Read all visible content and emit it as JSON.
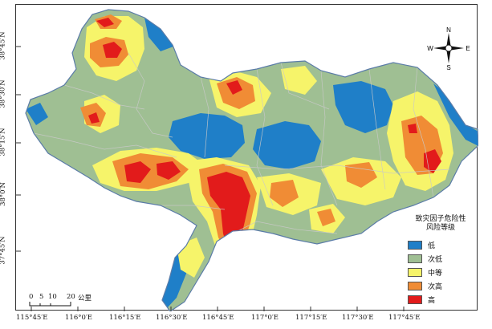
{
  "legend": {
    "title_line1": "致灾因子危险性",
    "title_line2": "风险等级",
    "items": [
      {
        "label": "低",
        "color": "#1f7fc8"
      },
      {
        "label": "次低",
        "color": "#9fbf93"
      },
      {
        "label": "中等",
        "color": "#f6f46a"
      },
      {
        "label": "次高",
        "color": "#f08c35"
      },
      {
        "label": "高",
        "color": "#e21b1b"
      }
    ]
  },
  "axes": {
    "longitudes": [
      "115°45′E",
      "116°0′E",
      "116°15′E",
      "116°30′E",
      "116°45′E",
      "117°0′E",
      "117°15′E",
      "117°30′E",
      "117°45′E"
    ],
    "latitudes": [
      "38°45′N",
      "38°30′N",
      "38°15′N",
      "38°0′N",
      "37°45′N"
    ]
  },
  "scale_bar": {
    "ticks": [
      "0",
      "5",
      "10",
      "20"
    ],
    "unit": "公里"
  },
  "compass": {
    "n": "N",
    "s": "S",
    "e": "E",
    "w": "W"
  },
  "colors": {
    "outside": "#ffffff",
    "border": "#5b7ca8",
    "boundary_lines": "#c9c9c9"
  }
}
